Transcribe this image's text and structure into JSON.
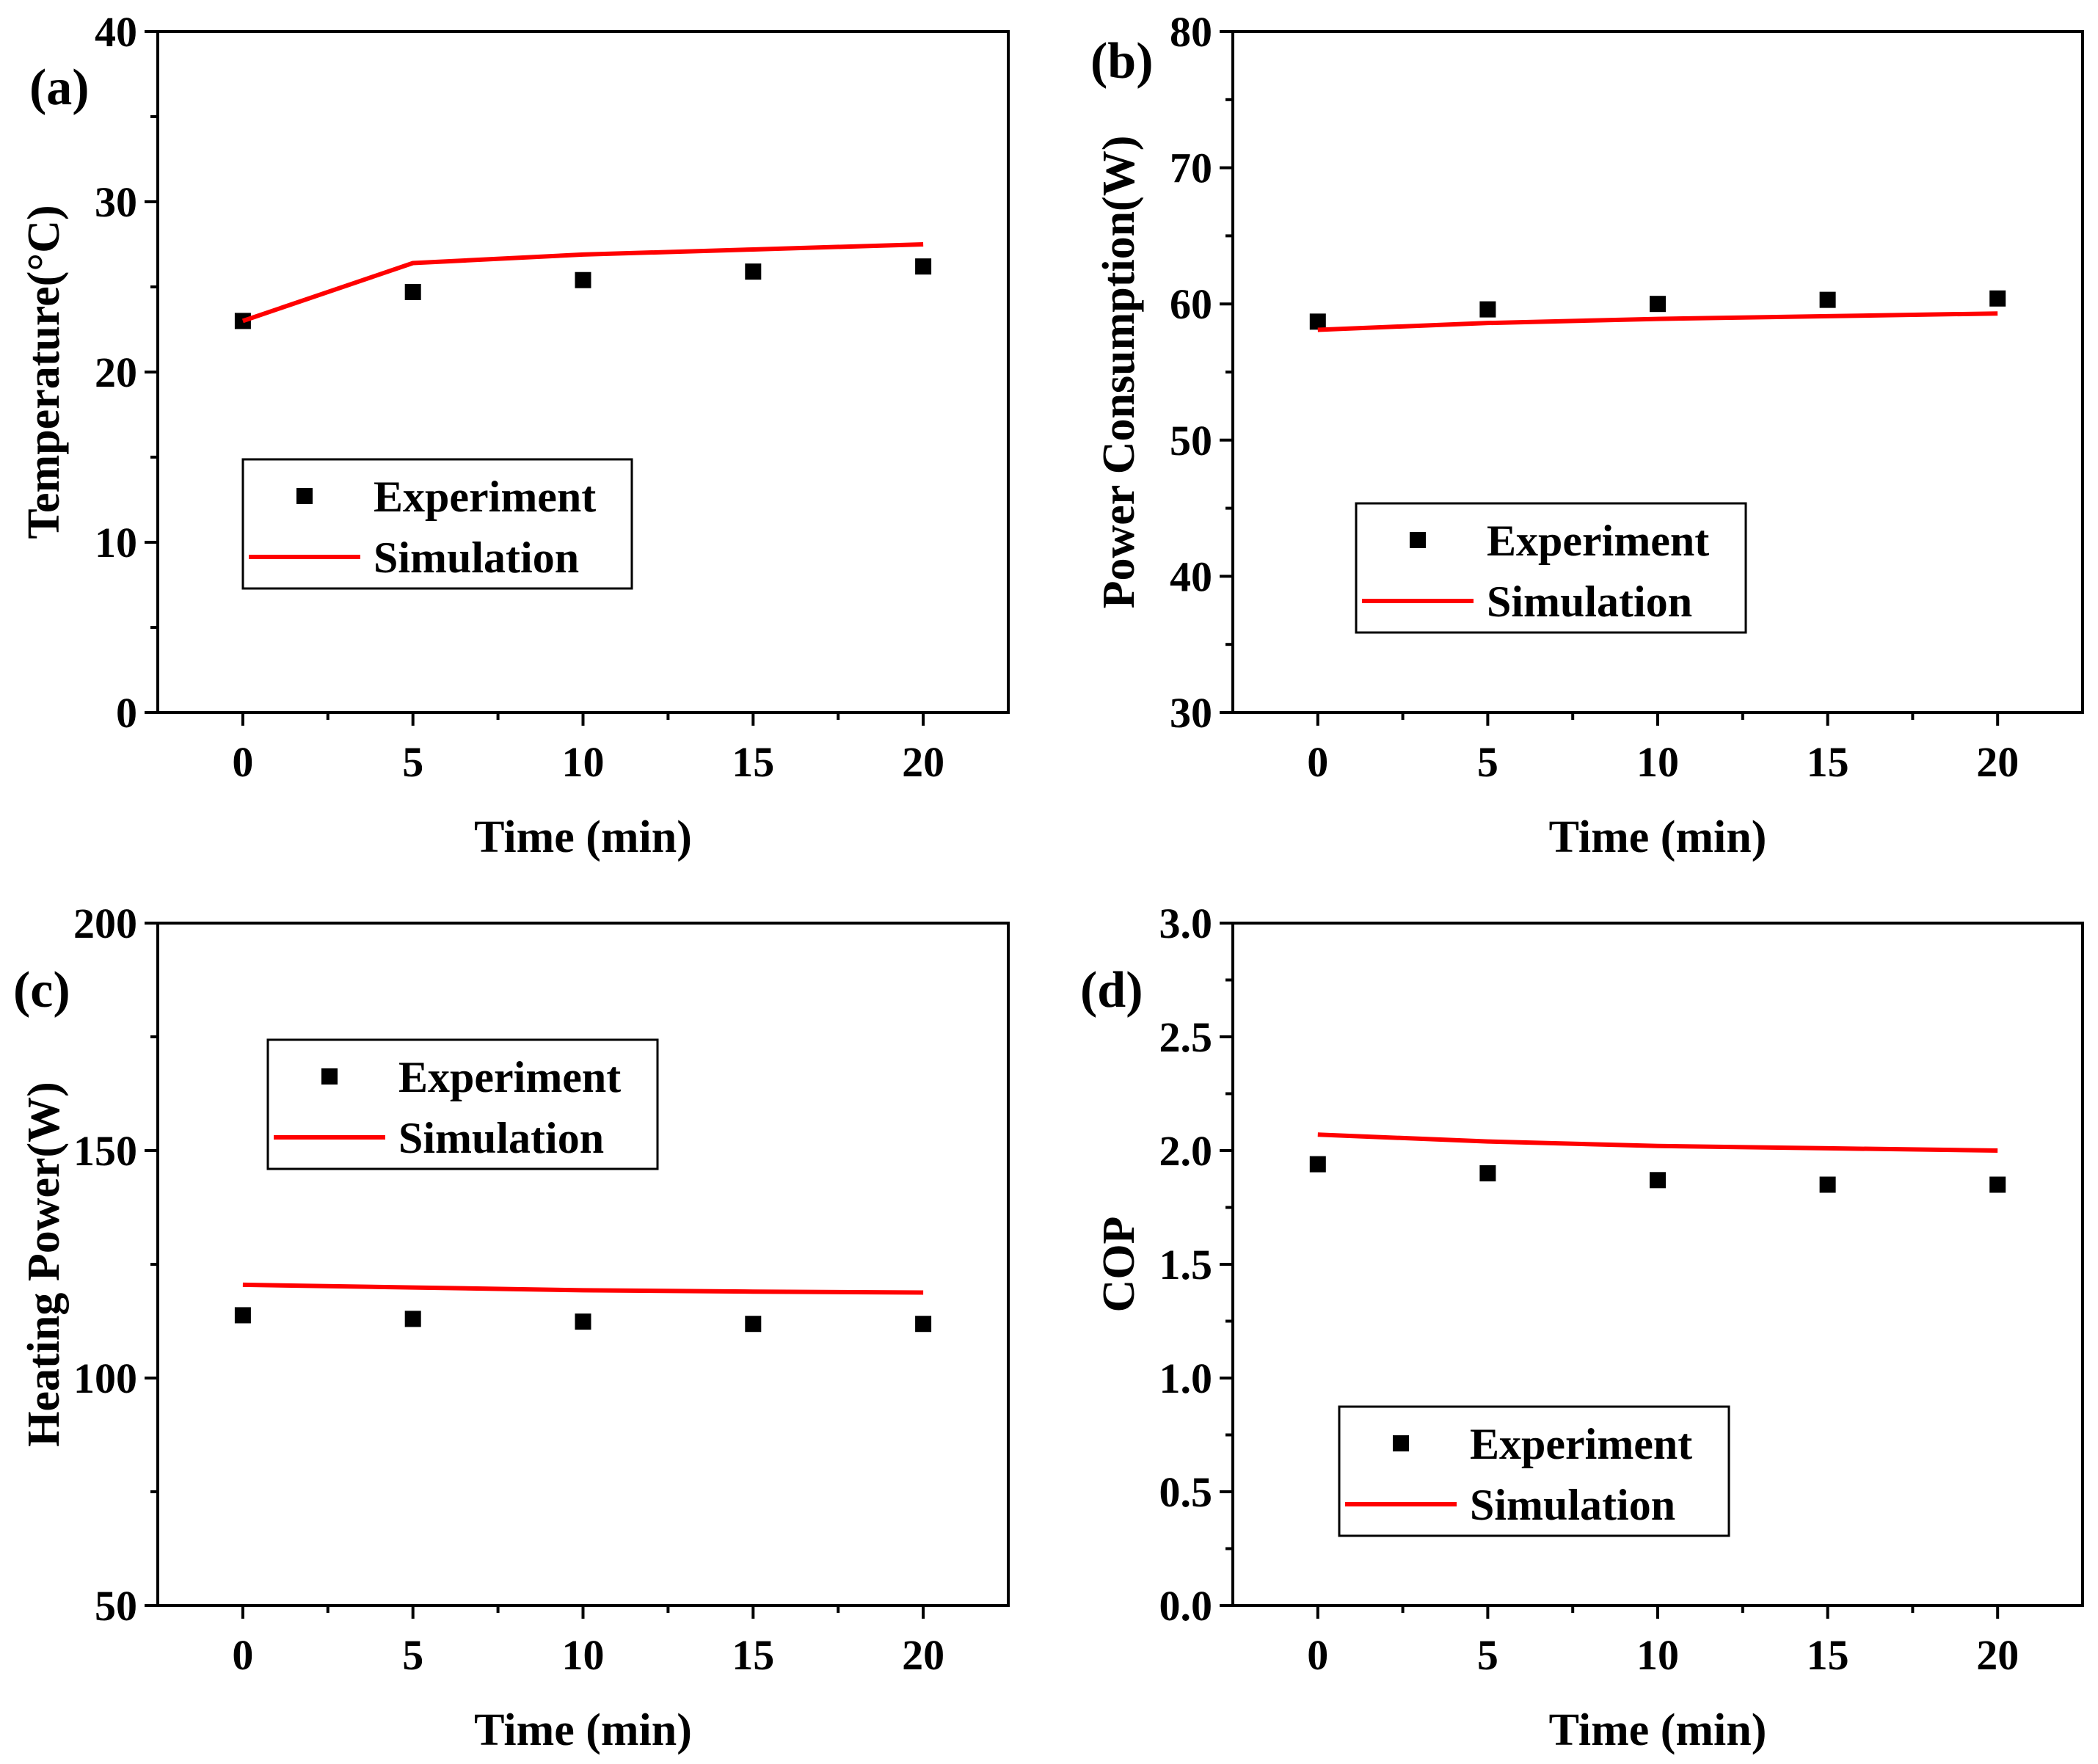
{
  "chart_data": [
    {
      "type": "line",
      "panel_label": "(a)",
      "xlabel": "Time (min)",
      "ylabel": "Temperature(°C)",
      "xlim": [
        -2.5,
        22.5
      ],
      "ylim": [
        0,
        40
      ],
      "x_ticks": [
        0,
        5,
        10,
        15,
        20
      ],
      "y_ticks": [
        0,
        10,
        20,
        30,
        40
      ],
      "grid": false,
      "legend_position": "center-left",
      "series": [
        {
          "name": "Experiment",
          "style": "markers",
          "color": "#000000",
          "x": [
            0,
            5,
            10,
            15,
            20
          ],
          "y": [
            23.0,
            24.7,
            25.4,
            25.9,
            26.2
          ]
        },
        {
          "name": "Simulation",
          "style": "line",
          "color": "#ff0000",
          "x": [
            0,
            5,
            10,
            15,
            20
          ],
          "y": [
            23.0,
            26.4,
            26.9,
            27.2,
            27.5
          ]
        }
      ]
    },
    {
      "type": "line",
      "panel_label": "(b)",
      "xlabel": "Time (min)",
      "ylabel": "Power Consumption(W)",
      "xlim": [
        -2.5,
        22.5
      ],
      "ylim": [
        30,
        80
      ],
      "x_ticks": [
        0,
        5,
        10,
        15,
        20
      ],
      "y_ticks": [
        30,
        40,
        50,
        60,
        70,
        80
      ],
      "grid": false,
      "legend_position": "lower-center",
      "series": [
        {
          "name": "Experiment",
          "style": "markers",
          "color": "#000000",
          "x": [
            0,
            5,
            10,
            15,
            20
          ],
          "y": [
            58.7,
            59.6,
            60.0,
            60.3,
            60.4
          ]
        },
        {
          "name": "Simulation",
          "style": "line",
          "color": "#ff0000",
          "x": [
            0,
            5,
            10,
            15,
            20
          ],
          "y": [
            58.1,
            58.6,
            58.9,
            59.1,
            59.3
          ]
        }
      ]
    },
    {
      "type": "line",
      "panel_label": "(c)",
      "xlabel": "Time (min)",
      "ylabel": "Heating Power(W)",
      "xlim": [
        -2.5,
        22.5
      ],
      "ylim": [
        50,
        200
      ],
      "x_ticks": [
        0,
        5,
        10,
        15,
        20
      ],
      "y_ticks": [
        50,
        100,
        150,
        200
      ],
      "grid": false,
      "legend_position": "upper-left",
      "series": [
        {
          "name": "Experiment",
          "style": "markers",
          "color": "#000000",
          "x": [
            0,
            5,
            10,
            15,
            20
          ],
          "y": [
            113.8,
            113.0,
            112.4,
            111.9,
            111.9
          ]
        },
        {
          "name": "Simulation",
          "style": "line",
          "color": "#ff0000",
          "x": [
            0,
            5,
            10,
            15,
            20
          ],
          "y": [
            120.5,
            119.9,
            119.3,
            119.0,
            118.8
          ]
        }
      ]
    },
    {
      "type": "line",
      "panel_label": "(d)",
      "xlabel": "Time (min)",
      "ylabel": "COP",
      "xlim": [
        -2.5,
        22.5
      ],
      "ylim": [
        0.0,
        3.0
      ],
      "x_ticks": [
        0,
        5,
        10,
        15,
        20
      ],
      "y_ticks": [
        0.0,
        0.5,
        1.0,
        1.5,
        2.0,
        2.5,
        3.0
      ],
      "y_tick_labels": [
        "0.0",
        "0.5",
        "1.0",
        "1.5",
        "2.0",
        "2.5",
        "3.0"
      ],
      "grid": false,
      "legend_position": "lower-center",
      "series": [
        {
          "name": "Experiment",
          "style": "markers",
          "color": "#000000",
          "x": [
            0,
            5,
            10,
            15,
            20
          ],
          "y": [
            1.94,
            1.9,
            1.87,
            1.85,
            1.85
          ]
        },
        {
          "name": "Simulation",
          "style": "line",
          "color": "#ff0000",
          "x": [
            0,
            5,
            10,
            15,
            20
          ],
          "y": [
            2.07,
            2.04,
            2.02,
            2.01,
            2.0
          ]
        }
      ]
    }
  ]
}
